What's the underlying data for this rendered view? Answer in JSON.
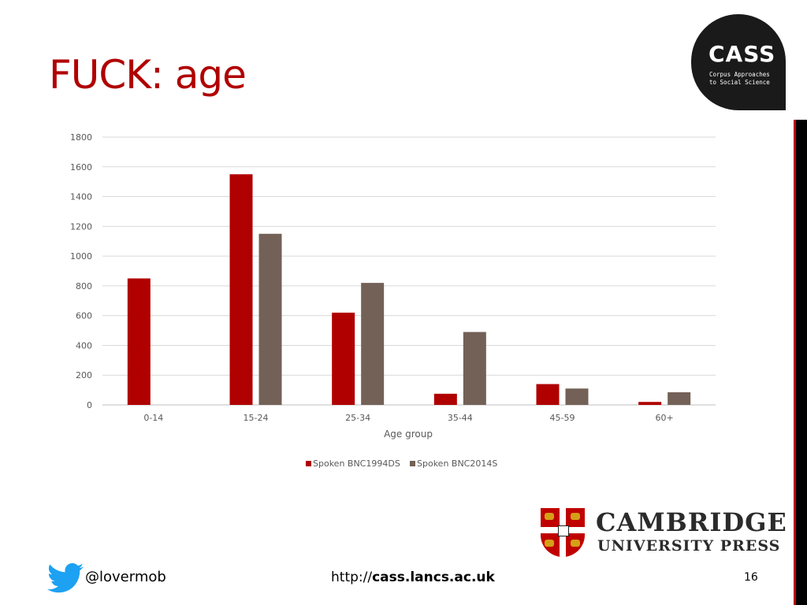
{
  "slide": {
    "title": "FUCK: age",
    "page_number": "16"
  },
  "cass_logo": {
    "name": "CASS",
    "subtitle_line1": "Corpus Approaches",
    "subtitle_line2": "to Social Science"
  },
  "publisher_logo": {
    "line1": "CAMBRIDGE",
    "line2": "UNIVERSITY PRESS"
  },
  "footer": {
    "twitter_icon": "twitter-bird-icon",
    "twitter_handle": "@lovermob",
    "url_prefix": "http://",
    "url_domain": "cass.lancs.ac.uk"
  },
  "colors": {
    "title": "#b00000",
    "series_1994": "#b00000",
    "series_2014": "#736157",
    "twitter": "#1da1f2"
  },
  "chart_data": {
    "type": "bar",
    "categories": [
      "0-14",
      "15-24",
      "25-34",
      "35-44",
      "45-59",
      "60+"
    ],
    "series": [
      {
        "name": "Spoken BNC1994DS",
        "values": [
          850,
          1550,
          620,
          75,
          140,
          20
        ]
      },
      {
        "name": "Spoken BNC2014S",
        "values": [
          0,
          1150,
          820,
          490,
          110,
          85
        ]
      }
    ],
    "xlabel": "Age group",
    "ylabel": "",
    "ylim": [
      0,
      1800
    ],
    "yticks": [
      0,
      200,
      400,
      600,
      800,
      1000,
      1200,
      1400,
      1600,
      1800
    ],
    "grid": true,
    "legend": "bottom"
  }
}
